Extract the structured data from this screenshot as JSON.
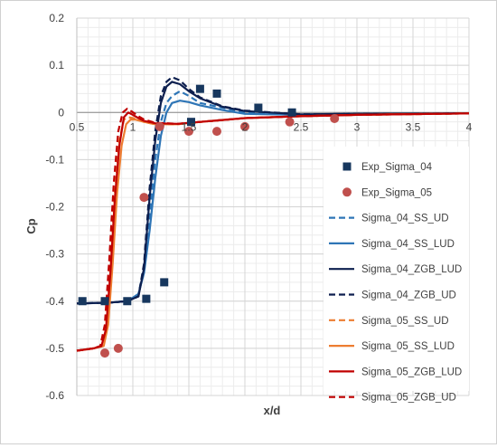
{
  "chart_data": {
    "type": "scatter",
    "title": "",
    "xlabel": "x/d",
    "ylabel": "Cp",
    "xlim": [
      0.5,
      4
    ],
    "ylim": [
      -0.6,
      0.2
    ],
    "x_ticks": [
      0.5,
      1,
      1.5,
      2,
      2.5,
      3,
      3.5,
      4
    ],
    "x_tick_labels": [
      "0.5",
      "1",
      "1.5",
      "2",
      "2.5",
      "3",
      "3.5",
      "4"
    ],
    "y_ticks": [
      0.2,
      0.1,
      0,
      -0.1,
      -0.2,
      -0.3,
      -0.4,
      -0.5,
      -0.6
    ],
    "y_tick_labels": [
      "0.2",
      "0.1",
      "0",
      "-0.1",
      "-0.2",
      "-0.3",
      "-0.4",
      "-0.5",
      "-0.6"
    ],
    "grid": true,
    "legend_position": "right",
    "series": [
      {
        "name": "Exp_Sigma_04",
        "kind": "marker",
        "marker": "square",
        "color": "#17375e",
        "x": [
          0.55,
          0.75,
          0.95,
          1.12,
          1.28,
          1.52,
          1.6,
          1.75,
          2.12,
          2.42
        ],
        "y": [
          -0.4,
          -0.4,
          -0.4,
          -0.395,
          -0.36,
          -0.02,
          0.05,
          0.04,
          0.01,
          0.0
        ]
      },
      {
        "name": "Exp_Sigma_05",
        "kind": "marker",
        "marker": "circle",
        "color": "#c0504d",
        "x": [
          0.75,
          0.87,
          1.1,
          1.24,
          1.5,
          1.75,
          2.0,
          2.4,
          2.8
        ],
        "y": [
          -0.51,
          -0.5,
          -0.18,
          -0.03,
          -0.04,
          -0.04,
          -0.03,
          -0.02,
          -0.013
        ]
      },
      {
        "name": "Sigma_04_SS_UD",
        "kind": "line",
        "dash": true,
        "color": "#2e75b6",
        "x": [
          0.5,
          0.8,
          0.95,
          1.05,
          1.1,
          1.15,
          1.2,
          1.25,
          1.3,
          1.35,
          1.42,
          1.5,
          1.6,
          1.8,
          2.0,
          2.5,
          3.0,
          4.0
        ],
        "y": [
          -0.405,
          -0.403,
          -0.4,
          -0.385,
          -0.33,
          -0.22,
          -0.1,
          -0.02,
          0.02,
          0.035,
          0.045,
          0.035,
          0.02,
          0.01,
          0.0,
          -0.005,
          -0.003,
          -0.002
        ]
      },
      {
        "name": "Sigma_04_SS_LUD",
        "kind": "line",
        "dash": false,
        "color": "#2e75b6",
        "x": [
          0.5,
          0.8,
          0.95,
          1.05,
          1.1,
          1.15,
          1.2,
          1.25,
          1.3,
          1.35,
          1.42,
          1.5,
          1.6,
          1.8,
          2.0,
          2.5,
          3.0,
          4.0
        ],
        "y": [
          -0.405,
          -0.403,
          -0.4,
          -0.385,
          -0.34,
          -0.25,
          -0.14,
          -0.05,
          0.0,
          0.02,
          0.025,
          0.022,
          0.015,
          0.005,
          -0.003,
          -0.005,
          -0.003,
          -0.002
        ]
      },
      {
        "name": "Sigma_04_ZGB_LUD",
        "kind": "line",
        "dash": false,
        "color": "#0d1f4f",
        "x": [
          0.5,
          0.8,
          0.95,
          1.05,
          1.1,
          1.15,
          1.2,
          1.25,
          1.3,
          1.35,
          1.42,
          1.5,
          1.6,
          1.8,
          2.0,
          2.5,
          3.0,
          4.0
        ],
        "y": [
          -0.405,
          -0.403,
          -0.4,
          -0.39,
          -0.33,
          -0.18,
          -0.06,
          0.02,
          0.055,
          0.065,
          0.06,
          0.045,
          0.03,
          0.012,
          0.003,
          -0.004,
          -0.003,
          -0.002
        ]
      },
      {
        "name": "Sigma_04_ZGB_UD",
        "kind": "line",
        "dash": true,
        "color": "#0d1f4f",
        "x": [
          0.5,
          0.8,
          0.95,
          1.05,
          1.1,
          1.15,
          1.2,
          1.25,
          1.3,
          1.35,
          1.42,
          1.5,
          1.6,
          1.8,
          2.0,
          2.5,
          3.0,
          4.0
        ],
        "y": [
          -0.405,
          -0.403,
          -0.4,
          -0.39,
          -0.32,
          -0.16,
          -0.04,
          0.035,
          0.065,
          0.075,
          0.068,
          0.05,
          0.032,
          0.013,
          0.004,
          -0.004,
          -0.003,
          -0.002
        ]
      },
      {
        "name": "Sigma_05_SS_UD",
        "kind": "line",
        "dash": true,
        "color": "#ed7d31",
        "x": [
          0.5,
          0.65,
          0.72,
          0.76,
          0.8,
          0.84,
          0.88,
          0.92,
          0.96,
          1.0,
          1.05,
          1.1,
          1.2,
          1.4,
          1.6,
          2.0,
          2.5,
          3.0,
          4.0
        ],
        "y": [
          -0.505,
          -0.5,
          -0.495,
          -0.46,
          -0.33,
          -0.17,
          -0.06,
          -0.015,
          -0.01,
          -0.012,
          -0.015,
          -0.02,
          -0.025,
          -0.025,
          -0.02,
          -0.012,
          -0.008,
          -0.005,
          -0.002
        ]
      },
      {
        "name": "Sigma_05_SS_LUD",
        "kind": "line",
        "dash": false,
        "color": "#ed7d31",
        "x": [
          0.5,
          0.65,
          0.74,
          0.78,
          0.82,
          0.86,
          0.9,
          0.94,
          0.98,
          1.02,
          1.1,
          1.2,
          1.4,
          1.6,
          2.0,
          2.5,
          3.0,
          4.0
        ],
        "y": [
          -0.505,
          -0.5,
          -0.495,
          -0.45,
          -0.32,
          -0.17,
          -0.07,
          -0.025,
          -0.015,
          -0.015,
          -0.02,
          -0.025,
          -0.025,
          -0.02,
          -0.012,
          -0.008,
          -0.005,
          -0.002
        ]
      },
      {
        "name": "Sigma_05_ZGB_LUD",
        "kind": "line",
        "dash": false,
        "color": "#c00000",
        "x": [
          0.5,
          0.65,
          0.72,
          0.76,
          0.8,
          0.84,
          0.88,
          0.92,
          0.96,
          1.0,
          1.05,
          1.1,
          1.2,
          1.4,
          1.6,
          2.0,
          2.5,
          3.0,
          4.0
        ],
        "y": [
          -0.505,
          -0.5,
          -0.495,
          -0.46,
          -0.34,
          -0.18,
          -0.07,
          -0.01,
          0.0,
          -0.005,
          -0.012,
          -0.018,
          -0.023,
          -0.024,
          -0.02,
          -0.012,
          -0.008,
          -0.005,
          -0.002
        ]
      },
      {
        "name": "Sigma_05_ZGB_UD",
        "kind": "line",
        "dash": true,
        "color": "#c00000",
        "x": [
          0.5,
          0.65,
          0.71,
          0.75,
          0.79,
          0.83,
          0.87,
          0.91,
          0.95,
          0.99,
          1.05,
          1.1,
          1.2,
          1.4,
          1.6,
          2.0,
          2.5,
          3.0,
          4.0
        ],
        "y": [
          -0.505,
          -0.5,
          -0.495,
          -0.45,
          -0.31,
          -0.15,
          -0.04,
          0.0,
          0.008,
          0.002,
          -0.008,
          -0.015,
          -0.022,
          -0.024,
          -0.02,
          -0.012,
          -0.008,
          -0.005,
          -0.002
        ]
      }
    ]
  }
}
